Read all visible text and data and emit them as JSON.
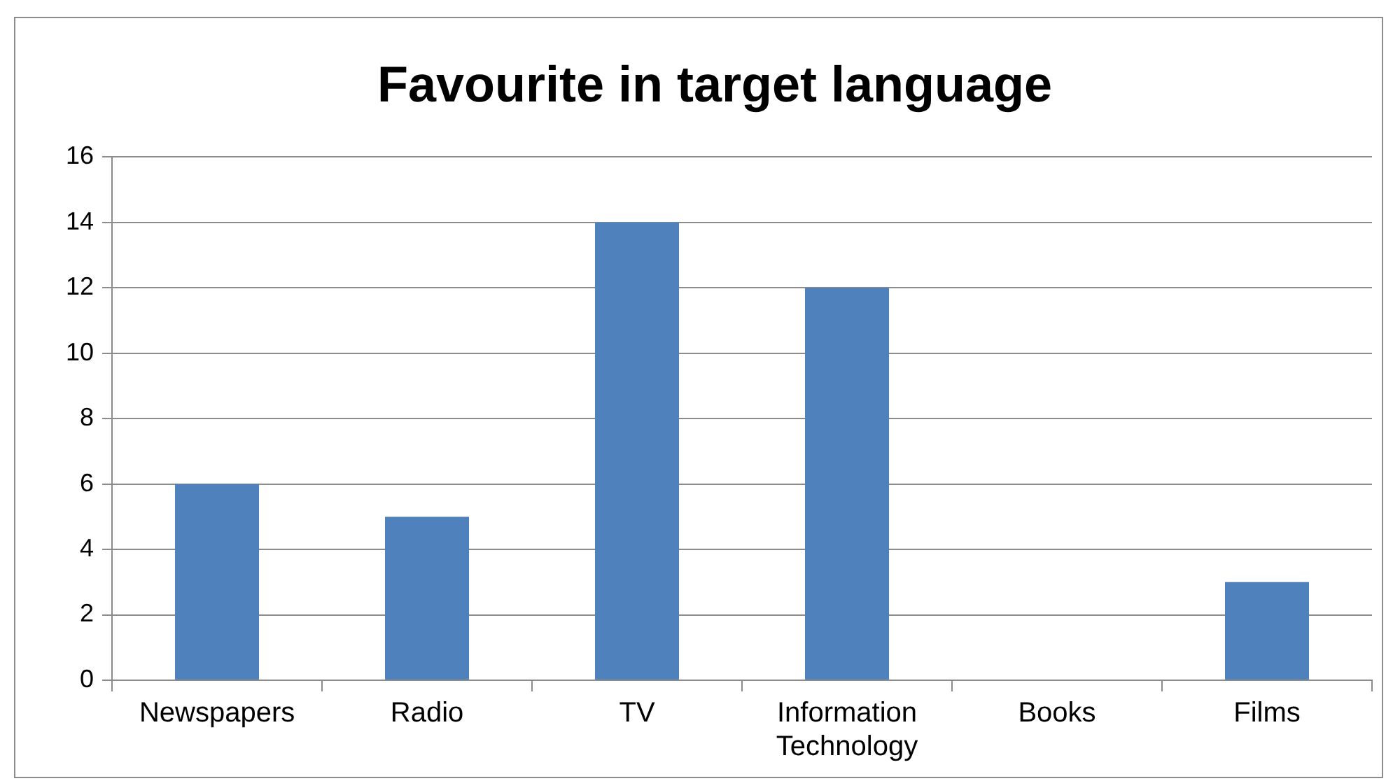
{
  "chart_data": {
    "type": "bar",
    "title": "Favourite in target language",
    "categories": [
      "Newspapers",
      "Radio",
      "TV",
      "Information Technology",
      "Books",
      "Films"
    ],
    "values": [
      6,
      5,
      14,
      12,
      0,
      3
    ],
    "color": "#4f81bd",
    "ylim": [
      0,
      16
    ],
    "yticks": [
      0,
      2,
      4,
      6,
      8,
      10,
      12,
      14,
      16
    ],
    "grid": "y",
    "legend": false
  }
}
